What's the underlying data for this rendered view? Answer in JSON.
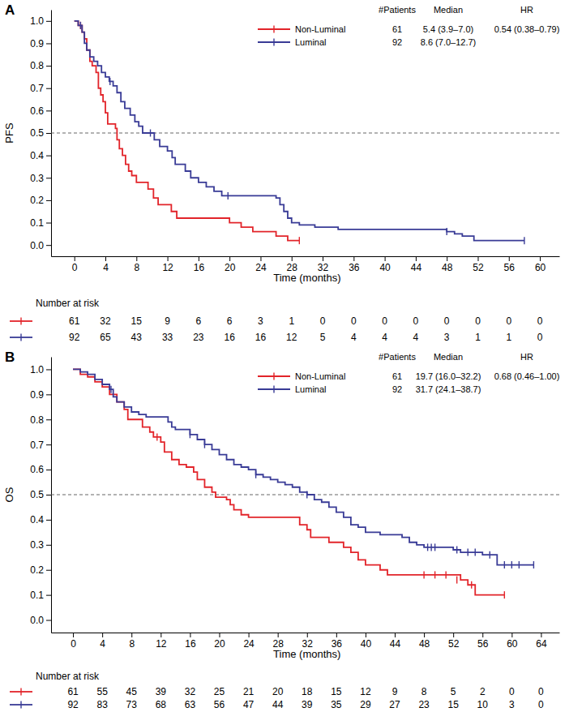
{
  "chart_data": [
    {
      "type": "kaplan_meier",
      "panel": "A",
      "y_label": "PFS",
      "x_label": "Time (months)",
      "xlim": [
        -3,
        62.5
      ],
      "xticks": [
        0,
        4,
        8,
        12,
        16,
        20,
        24,
        28,
        32,
        36,
        40,
        44,
        48,
        52,
        56,
        60
      ],
      "ylim": [
        -0.05,
        1.05
      ],
      "yticks": [
        {
          "value": 0,
          "label": "0.0"
        },
        0.1,
        0.2,
        0.3,
        0.4,
        0.5,
        0.6,
        0.7,
        0.8,
        0.9,
        {
          "value": 1,
          "label": "1.0"
        }
      ],
      "hline": 0.5,
      "line_style": "step",
      "table_headers": [
        "#Patients",
        "Median",
        "HR"
      ],
      "hr": "0.54 (0.38–0.79)",
      "risk_title": "Number at risk",
      "series": [
        {
          "name": "Non-Luminal",
          "color": "#e2242a",
          "patients": 61,
          "median": "5.4 (3.9–7.0)",
          "x": [
            0,
            0.5,
            1,
            1.3,
            1.6,
            2,
            2.3,
            2.8,
            3.1,
            3.4,
            3.7,
            4,
            4.3,
            5.3,
            5.5,
            5.8,
            6.2,
            6.6,
            7,
            7.4,
            8,
            9.5,
            10.2,
            10.8,
            12.5,
            13.2,
            20,
            21.5,
            23,
            26,
            27.5,
            29
          ],
          "values": [
            1.0,
            0.98,
            0.95,
            0.92,
            0.87,
            0.82,
            0.8,
            0.77,
            0.7,
            0.67,
            0.64,
            0.59,
            0.54,
            0.52,
            0.47,
            0.43,
            0.4,
            0.36,
            0.33,
            0.31,
            0.28,
            0.25,
            0.21,
            0.18,
            0.15,
            0.12,
            0.1,
            0.08,
            0.06,
            0.04,
            0.02,
            0.02
          ],
          "censor_x": [
            0.8,
            29
          ],
          "censor_values": [
            0.98,
            0.02
          ],
          "at_risk": [
            61,
            32,
            15,
            9,
            6,
            6,
            3,
            1,
            0,
            0,
            0,
            0,
            0,
            0,
            0,
            0
          ]
        },
        {
          "name": "Luminal",
          "color": "#393b96",
          "patients": 92,
          "median": "8.6 (7.0–12.7)",
          "x": [
            0,
            0.5,
            1,
            1.3,
            1.6,
            2,
            2.5,
            3,
            3.5,
            4,
            4.5,
            5,
            5.5,
            6,
            6.5,
            7.2,
            7.8,
            8.3,
            8.8,
            10.3,
            11,
            12,
            12.6,
            13,
            14.3,
            15,
            16,
            17,
            18,
            19,
            26,
            26.5,
            27,
            27.5,
            28,
            29,
            31,
            34,
            48,
            49,
            50,
            51.5,
            58
          ],
          "values": [
            1.0,
            0.98,
            0.95,
            0.9,
            0.87,
            0.84,
            0.82,
            0.8,
            0.77,
            0.75,
            0.73,
            0.71,
            0.68,
            0.64,
            0.61,
            0.58,
            0.55,
            0.53,
            0.5,
            0.47,
            0.44,
            0.42,
            0.39,
            0.36,
            0.33,
            0.3,
            0.28,
            0.26,
            0.24,
            0.22,
            0.21,
            0.18,
            0.15,
            0.12,
            0.1,
            0.09,
            0.08,
            0.07,
            0.06,
            0.05,
            0.04,
            0.02,
            0.02
          ],
          "censor_x": [
            0.8,
            4.6,
            9.8,
            19.8,
            48,
            58
          ],
          "censor_values": [
            0.98,
            0.73,
            0.5,
            0.22,
            0.06,
            0.02
          ],
          "at_risk": [
            92,
            65,
            43,
            33,
            23,
            16,
            16,
            12,
            5,
            4,
            4,
            4,
            3,
            1,
            1,
            0
          ]
        }
      ]
    },
    {
      "type": "kaplan_meier",
      "panel": "B",
      "y_label": "OS",
      "x_label": "Time (months)",
      "xlim": [
        -3,
        66.5
      ],
      "xticks": [
        0,
        4,
        8,
        12,
        16,
        20,
        24,
        28,
        32,
        36,
        40,
        44,
        48,
        52,
        56,
        60,
        64
      ],
      "ylim": [
        -0.05,
        1.05
      ],
      "yticks": [
        {
          "value": 0,
          "label": "0.0"
        },
        0.1,
        0.2,
        0.3,
        0.4,
        0.5,
        0.6,
        0.7,
        0.8,
        0.9,
        {
          "value": 1,
          "label": "1.0"
        }
      ],
      "hline": 0.5,
      "line_style": "step",
      "table_headers": [
        "#Patients",
        "Median",
        "HR"
      ],
      "hr": "0.68 (0.46–1.00)",
      "risk_title": "Number at risk",
      "series": [
        {
          "name": "Non-Luminal",
          "color": "#e2242a",
          "patients": 61,
          "median": "19.7 (16.0–32.2)",
          "x": [
            0,
            1,
            2,
            3,
            4,
            5,
            6,
            7,
            7.5,
            9.5,
            10.5,
            11,
            12,
            12.5,
            13.5,
            14.5,
            15.5,
            16.5,
            17,
            18,
            19,
            19.5,
            21,
            21.5,
            22,
            23,
            24,
            31,
            32,
            32.5,
            35,
            37,
            38,
            39,
            40,
            42,
            43,
            53,
            54,
            55,
            59
          ],
          "values": [
            1.0,
            0.98,
            0.97,
            0.95,
            0.93,
            0.9,
            0.87,
            0.84,
            0.8,
            0.77,
            0.75,
            0.73,
            0.71,
            0.67,
            0.64,
            0.62,
            0.61,
            0.59,
            0.56,
            0.53,
            0.51,
            0.49,
            0.48,
            0.46,
            0.44,
            0.42,
            0.41,
            0.38,
            0.36,
            0.33,
            0.31,
            0.29,
            0.27,
            0.24,
            0.22,
            0.2,
            0.18,
            0.16,
            0.14,
            0.1,
            0.1
          ],
          "censor_x": [
            11.5,
            48,
            49.5,
            51,
            52.5,
            54.5,
            59
          ],
          "censor_values": [
            0.73,
            0.18,
            0.18,
            0.18,
            0.16,
            0.14,
            0.1
          ],
          "at_risk": [
            61,
            55,
            45,
            39,
            32,
            25,
            21,
            20,
            18,
            15,
            12,
            9,
            8,
            5,
            2,
            0,
            0
          ]
        },
        {
          "name": "Luminal",
          "color": "#393b96",
          "patients": 92,
          "median": "31.7 (24.1–38.7)",
          "x": [
            0,
            1,
            2,
            3,
            4,
            5,
            5.5,
            6,
            7,
            8,
            9,
            10,
            13,
            13.5,
            14,
            16,
            17,
            18,
            19,
            20,
            21,
            22,
            23,
            24,
            25,
            26,
            27,
            28,
            29,
            30,
            31,
            32,
            33,
            34,
            35,
            36,
            37,
            38,
            39,
            40,
            42,
            45,
            46,
            47,
            48,
            52,
            53,
            56,
            58,
            63
          ],
          "values": [
            1.0,
            0.99,
            0.98,
            0.96,
            0.94,
            0.92,
            0.89,
            0.87,
            0.85,
            0.83,
            0.82,
            0.81,
            0.79,
            0.77,
            0.76,
            0.74,
            0.72,
            0.7,
            0.68,
            0.66,
            0.64,
            0.62,
            0.61,
            0.6,
            0.58,
            0.57,
            0.56,
            0.55,
            0.54,
            0.53,
            0.51,
            0.5,
            0.48,
            0.47,
            0.45,
            0.43,
            0.41,
            0.38,
            0.37,
            0.35,
            0.34,
            0.33,
            0.31,
            0.3,
            0.29,
            0.28,
            0.27,
            0.26,
            0.22,
            0.22
          ],
          "censor_x": [
            5.2,
            16,
            18,
            25,
            32,
            48.5,
            49,
            49.5,
            52.5,
            54,
            55,
            57,
            59,
            60,
            61,
            63
          ],
          "censor_values": [
            0.92,
            0.74,
            0.7,
            0.58,
            0.5,
            0.29,
            0.29,
            0.29,
            0.28,
            0.27,
            0.27,
            0.26,
            0.22,
            0.22,
            0.22,
            0.22
          ],
          "at_risk": [
            92,
            83,
            73,
            68,
            63,
            56,
            47,
            44,
            39,
            35,
            29,
            27,
            23,
            15,
            10,
            3,
            0
          ]
        }
      ]
    }
  ]
}
